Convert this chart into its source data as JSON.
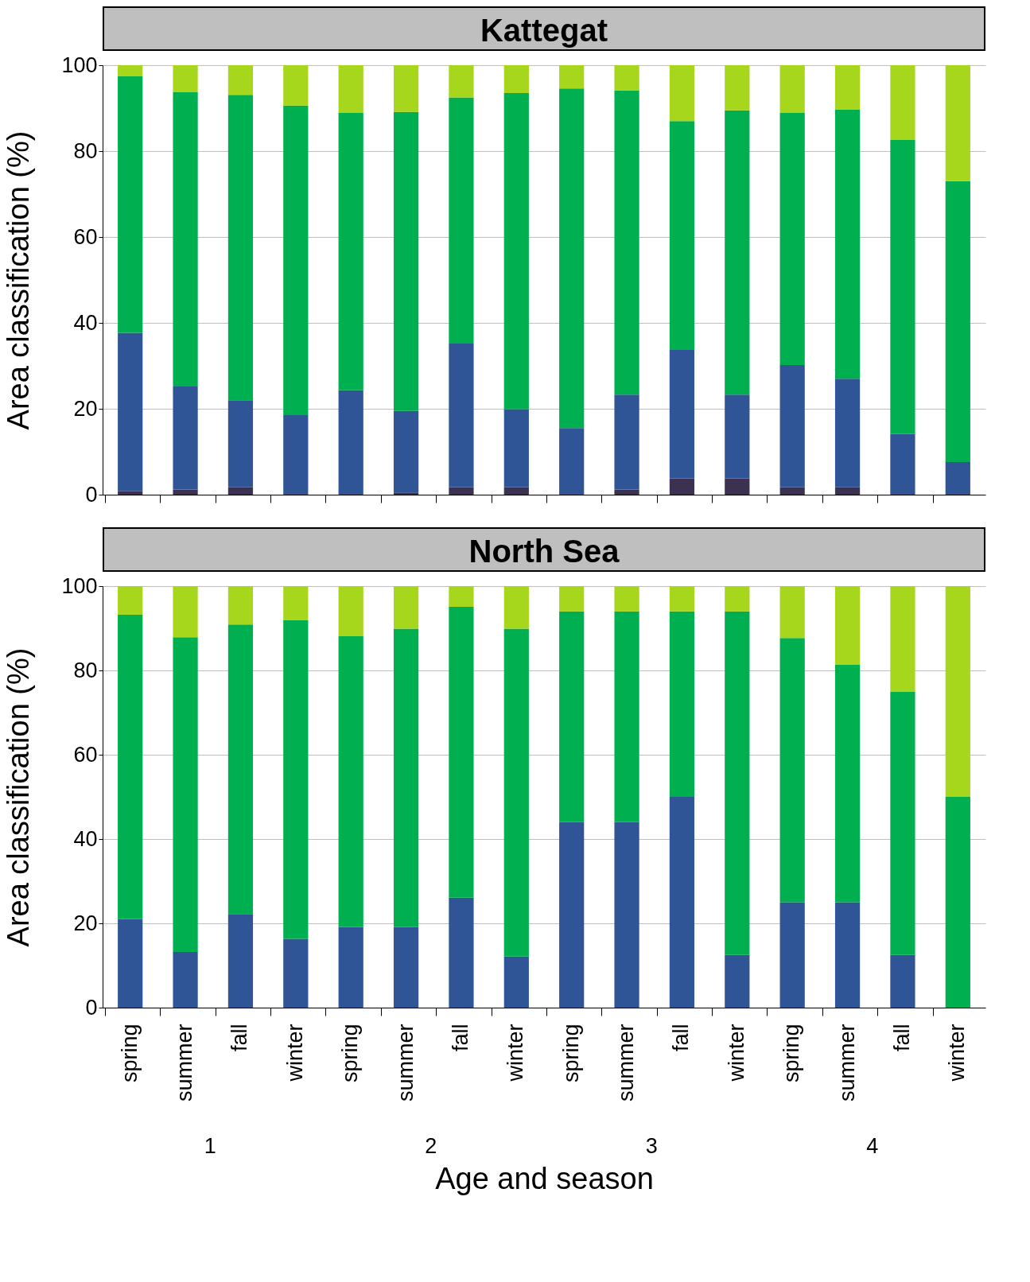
{
  "chart_data": [
    {
      "type": "bar",
      "title": "Kattegat",
      "ylabel": "Area classification (%)",
      "categories": [
        null,
        null,
        null,
        null,
        null,
        null,
        null,
        null,
        null,
        null,
        null,
        null,
        null,
        null,
        null,
        null
      ],
      "stacked": true,
      "series": [
        {
          "color": "#3c3151",
          "values": [
            0.8,
            1.2,
            1.7,
            0,
            0,
            0.5,
            1.7,
            1.7,
            0,
            1.2,
            3.8,
            3.8,
            1.7,
            1.7,
            0,
            0
          ]
        },
        {
          "color": "#2f5597",
          "values": [
            36.9,
            24,
            20.3,
            18.5,
            24.3,
            19,
            33.5,
            18.2,
            15.5,
            22.1,
            29.9,
            19.5,
            28.5,
            25.3,
            14.1,
            7.6
          ]
        },
        {
          "color": "#00b050",
          "values": [
            59.8,
            68.5,
            71.1,
            72.1,
            64.6,
            69.6,
            57.3,
            73.6,
            79.1,
            70.8,
            53.3,
            66.2,
            58.7,
            62.7,
            68.5,
            65.4
          ]
        },
        {
          "color": "#a6d71c",
          "values": [
            2.5,
            6.3,
            6.9,
            9.4,
            11.1,
            10.9,
            7.5,
            6.5,
            5.4,
            5.9,
            13,
            10.5,
            11.1,
            10.3,
            17.4,
            27
          ]
        }
      ],
      "ylim": [
        0,
        100
      ],
      "yticks": [
        0,
        20,
        40,
        60,
        80,
        100
      ],
      "grid": "y",
      "tick_labels": "y"
    },
    {
      "type": "bar",
      "title": "North Sea",
      "ylabel": "Area classification (%)",
      "xlabel": "Age and season",
      "categories": [
        "spring",
        "summer",
        "fall",
        "winter",
        "spring",
        "summer",
        "fall",
        "winter",
        "spring",
        "summer",
        "fall",
        "winter",
        "spring",
        "summer",
        "fall",
        "winter"
      ],
      "stacked": true,
      "series": [
        {
          "color": "#2f5597",
          "values": [
            21,
            13.2,
            22.2,
            16.3,
            19.1,
            19.1,
            26.1,
            12.1,
            44,
            44,
            50,
            12.5,
            25,
            25,
            12.5,
            0
          ]
        },
        {
          "color": "#00b050",
          "values": [
            72.2,
            74.7,
            68.7,
            75.7,
            69,
            70.8,
            69,
            77.8,
            50,
            50,
            44,
            81.5,
            62.7,
            56.3,
            62.5,
            50
          ]
        },
        {
          "color": "#a6d71c",
          "values": [
            6.8,
            12.1,
            9.1,
            8,
            11.9,
            10.1,
            4.9,
            10.1,
            6,
            6,
            6,
            6,
            12.3,
            18.7,
            25,
            50
          ]
        }
      ],
      "ylim": [
        0,
        100
      ],
      "yticks": [
        0,
        20,
        40,
        60,
        80,
        100
      ],
      "grid": "y",
      "annotations": [
        "1",
        "2",
        "3",
        "4"
      ]
    }
  ]
}
